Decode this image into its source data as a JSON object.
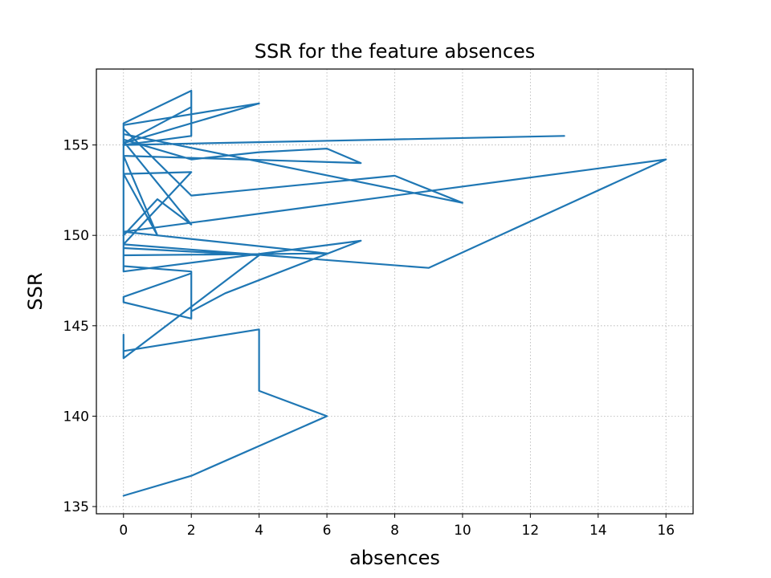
{
  "chart_data": {
    "type": "line",
    "title": "SSR for the feature absences",
    "xlabel": "absences",
    "ylabel": "SSR",
    "xlim": [
      -0.8,
      16.8
    ],
    "ylim": [
      134.6,
      159.2
    ],
    "xticks": [
      0,
      2,
      4,
      6,
      8,
      10,
      12,
      14,
      16
    ],
    "yticks": [
      135,
      140,
      145,
      150,
      155
    ],
    "grid": true,
    "color": "#1f77b4",
    "series": [
      {
        "x": [
          0,
          2,
          6,
          4,
          4,
          0,
          0,
          0,
          4,
          0,
          0,
          2,
          2,
          0,
          0,
          2,
          2,
          3,
          7,
          0,
          0,
          6,
          0,
          0,
          2,
          0,
          0,
          9,
          16,
          0,
          0,
          1,
          2,
          0,
          0,
          10,
          8,
          2,
          0,
          0,
          1,
          0,
          0,
          7,
          6,
          4,
          2,
          0,
          0,
          13,
          0,
          0,
          2,
          2,
          0,
          0,
          4,
          0,
          2
        ],
        "y": [
          135.6,
          136.7,
          140.0,
          141.4,
          144.8,
          143.6,
          144.5,
          143.2,
          148.9,
          149.3,
          148.3,
          148.0,
          145.4,
          146.3,
          146.6,
          147.9,
          145.8,
          146.8,
          149.7,
          148.0,
          150.2,
          149.0,
          148.9,
          149.5,
          153.5,
          153.4,
          149.5,
          148.2,
          154.2,
          150.2,
          150.0,
          152.0,
          150.6,
          155.2,
          155.6,
          151.8,
          153.3,
          152.2,
          155.9,
          154.4,
          150.0,
          153.4,
          154.4,
          154.0,
          154.8,
          154.6,
          154.2,
          155.3,
          155.0,
          155.5,
          155.0,
          156.2,
          158.0,
          155.5,
          155.0,
          156.1,
          157.3,
          155.1,
          157.1
        ]
      }
    ]
  }
}
